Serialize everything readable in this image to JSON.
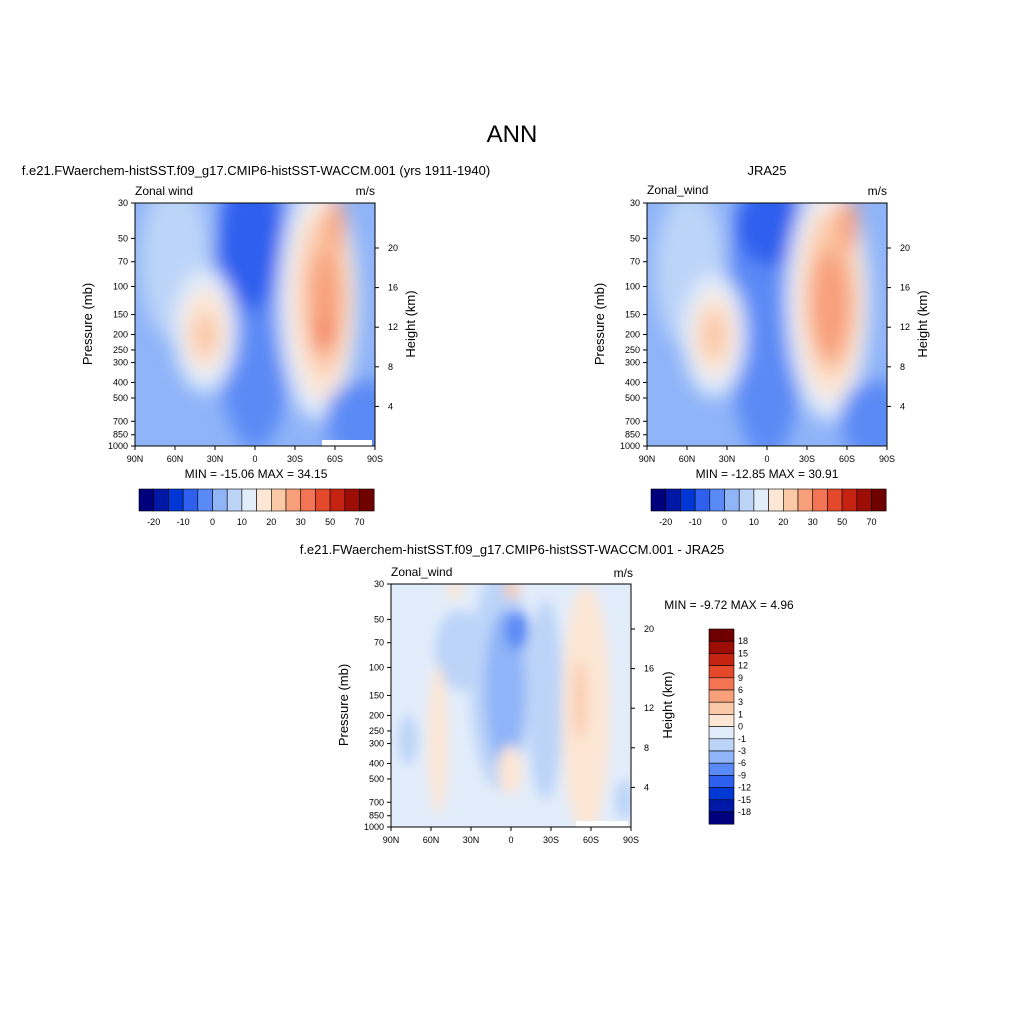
{
  "figure": {
    "title": "ANN"
  },
  "colors": {
    "palette_model": [
      "#00007f",
      "#0018a6",
      "#0038d6",
      "#2e5fee",
      "#5a8af5",
      "#8fb4f8",
      "#bcd4f8",
      "#e2edfb",
      "#fde6d4",
      "#fbc8a8",
      "#f8a07a",
      "#f27452",
      "#e4492c",
      "#c42411",
      "#9c0d05",
      "#6e0000"
    ],
    "palette_diff": [
      "#6e0000",
      "#9c0d05",
      "#c42411",
      "#e4492c",
      "#f27452",
      "#f8a07a",
      "#fbc8a8",
      "#fde6d4",
      "#e2edfb",
      "#bcd4f8",
      "#8fb4f8",
      "#5a8af5",
      "#2e5fee",
      "#0038d6",
      "#0018a6",
      "#00007f"
    ]
  },
  "panels": {
    "model": {
      "subtitle": "f.e21.FWaerchem-histSST.f09_g17.CMIP6-histSST-WACCM.001 (yrs 1911-1940)",
      "left_label": "Zonal wind",
      "right_label": "m/s",
      "stats": "MIN = -15.06  MAX =  34.15",
      "colorbar_labels": [
        "-20",
        "-10",
        "0",
        "10",
        "20",
        "30",
        "50",
        "70"
      ]
    },
    "obs": {
      "subtitle": "JRA25",
      "left_label": "Zonal_wind",
      "right_label": "m/s",
      "stats": "MIN = -12.85  MAX =  30.91",
      "colorbar_labels": [
        "-20",
        "-10",
        "0",
        "10",
        "20",
        "30",
        "50",
        "70"
      ]
    },
    "diff": {
      "subtitle": "f.e21.FWaerchem-histSST.f09_g17.CMIP6-histSST-WACCM.001 - JRA25",
      "left_label": "Zonal_wind",
      "right_label": "m/s",
      "stats": "MIN =  -9.72  MAX =   4.96",
      "colorbar_labels": [
        "18",
        "15",
        "12",
        "9",
        "6",
        "3",
        "1",
        "0",
        "-1",
        "-3",
        "-6",
        "-9",
        "-12",
        "-15",
        "-18"
      ]
    }
  },
  "axes": {
    "ylabel": "Pressure (mb)",
    "ylabel_right": "Height (km)",
    "pressure_ticks": [
      "30",
      "50",
      "70",
      "100",
      "150",
      "200",
      "250",
      "300",
      "400",
      "500",
      "700",
      "850",
      "1000"
    ],
    "height_ticks": [
      "20",
      "16",
      "12",
      "8",
      "4"
    ],
    "lat_ticks": [
      "90N",
      "60N",
      "30N",
      "0",
      "30S",
      "60S",
      "90S"
    ]
  },
  "chart_data": [
    {
      "type": "heatmap",
      "name": "model",
      "variable": "Zonal wind",
      "units": "m/s",
      "x": [
        -90,
        -60,
        -30,
        0,
        30,
        60,
        90
      ],
      "x_labels": [
        "90N",
        "60N",
        "30N",
        "0",
        "30S",
        "60S",
        "90S"
      ],
      "y_pressure": [
        30,
        50,
        70,
        100,
        150,
        200,
        250,
        300,
        400,
        500,
        700,
        850,
        1000
      ],
      "levels": [
        -20,
        -10,
        0,
        10,
        20,
        30,
        50,
        70
      ],
      "min": -15.06,
      "max": 34.15,
      "features": [
        {
          "lat": -35,
          "p": 200,
          "value": 20
        },
        {
          "lat": 45,
          "p": 200,
          "value": 30
        },
        {
          "lat": 0,
          "p": 50,
          "value": -15
        }
      ]
    },
    {
      "type": "heatmap",
      "name": "obs",
      "variable": "Zonal_wind",
      "units": "m/s",
      "x": [
        -90,
        -60,
        -30,
        0,
        30,
        60,
        90
      ],
      "x_labels": [
        "90N",
        "60N",
        "30N",
        "0",
        "30S",
        "60S",
        "90S"
      ],
      "y_pressure": [
        30,
        50,
        70,
        100,
        150,
        200,
        250,
        300,
        400,
        500,
        700,
        850,
        1000
      ],
      "levels": [
        -20,
        -10,
        0,
        10,
        20,
        30,
        50,
        70
      ],
      "min": -12.85,
      "max": 30.91,
      "features": [
        {
          "lat": -38,
          "p": 200,
          "value": 20
        },
        {
          "lat": 42,
          "p": 200,
          "value": 30
        },
        {
          "lat": 0,
          "p": 50,
          "value": -12
        }
      ]
    },
    {
      "type": "heatmap",
      "name": "difference",
      "variable": "Zonal_wind",
      "units": "m/s",
      "x": [
        -90,
        -60,
        -30,
        0,
        30,
        60,
        90
      ],
      "x_labels": [
        "90N",
        "60N",
        "30N",
        "0",
        "30S",
        "60S",
        "90S"
      ],
      "y_pressure": [
        30,
        50,
        70,
        100,
        150,
        200,
        250,
        300,
        400,
        500,
        700,
        850,
        1000
      ],
      "levels": [
        -18,
        -15,
        -12,
        -9,
        -6,
        -3,
        -1,
        0,
        1,
        3,
        6,
        9,
        12,
        15,
        18
      ],
      "min": -9.72,
      "max": 4.96,
      "features": [
        {
          "lat": 0,
          "p": 70,
          "value": -9
        },
        {
          "lat": 55,
          "p": 200,
          "value": 3
        },
        {
          "lat": -40,
          "p": 250,
          "value": 1
        }
      ]
    }
  ]
}
